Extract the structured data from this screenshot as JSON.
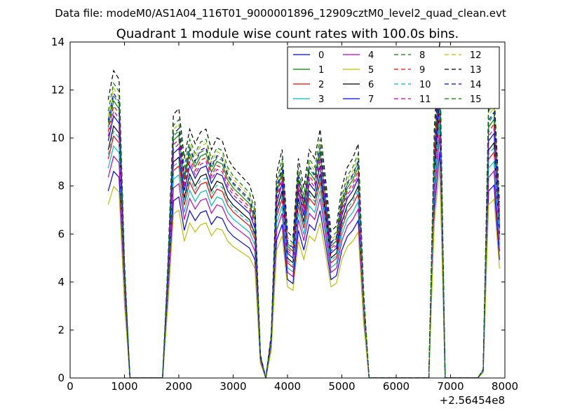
{
  "header": {
    "suptitle": "Data file: modeM0/AS1A04_116T01_9000001896_12909cztM0_level2_quad_clean.evt"
  },
  "chart_data": {
    "type": "line",
    "title": "Quadrant 1 module wise count rates with 100.0s bins.",
    "xlabel": "",
    "ylabel": "",
    "x_offset_label": "+2.56454e8",
    "xlim": [
      0,
      8000
    ],
    "ylim": [
      0,
      14
    ],
    "xticks": [
      "0",
      "1000",
      "2000",
      "3000",
      "4000",
      "5000",
      "6000",
      "7000",
      "8000"
    ],
    "yticks": [
      "0",
      "2",
      "4",
      "6",
      "8",
      "10",
      "12",
      "14"
    ],
    "grid": false,
    "legend_position": "top-right",
    "x": [
      700,
      800,
      900,
      1000,
      1100,
      1200,
      1300,
      1400,
      1500,
      1600,
      1700,
      1800,
      1900,
      2000,
      2100,
      2200,
      2300,
      2400,
      2500,
      2600,
      2700,
      2800,
      2900,
      3000,
      3100,
      3200,
      3300,
      3400,
      3500,
      3600,
      3700,
      3800,
      3900,
      4000,
      4100,
      4200,
      4300,
      4400,
      4500,
      4600,
      4700,
      4800,
      4900,
      5000,
      5100,
      5200,
      5300,
      5400,
      5500,
      5600,
      5700,
      5800,
      5900,
      6000,
      6100,
      6200,
      6300,
      6400,
      6500,
      6600,
      6700,
      6800,
      6900,
      7000,
      7100,
      7200,
      7300,
      7400,
      7500,
      7600,
      7700,
      7800,
      7900
    ],
    "base_profile": [
      9.5,
      10.5,
      10.2,
      4.0,
      0,
      0,
      0,
      0,
      0,
      0,
      0,
      4.0,
      9.0,
      9.2,
      7.5,
      8.5,
      8.0,
      8.4,
      8.5,
      7.8,
      8.2,
      8.1,
      7.5,
      7.2,
      7.0,
      6.8,
      6.6,
      6.0,
      0.8,
      0,
      1.5,
      7.0,
      7.8,
      5.0,
      4.8,
      7.5,
      6.5,
      7.8,
      7.5,
      8.5,
      6.8,
      5.0,
      5.2,
      6.5,
      7.2,
      7.5,
      8.0,
      3.0,
      0,
      0,
      0,
      0,
      0,
      0,
      0,
      0,
      0,
      0,
      0,
      0,
      8.5,
      11.5,
      0,
      0,
      0,
      0,
      0,
      0,
      0,
      0.3,
      9.5,
      9.8,
      6.0
    ],
    "series": [
      {
        "name": "0",
        "color": "#0000ff",
        "dash": "solid",
        "scale": 0.82
      },
      {
        "name": "1",
        "color": "#008000",
        "dash": "solid",
        "scale": 1.1
      },
      {
        "name": "2",
        "color": "#ff0000",
        "dash": "solid",
        "scale": 0.96
      },
      {
        "name": "3",
        "color": "#00bfbf",
        "dash": "solid",
        "scale": 0.92
      },
      {
        "name": "4",
        "color": "#bf00bf",
        "dash": "solid",
        "scale": 0.88
      },
      {
        "name": "5",
        "color": "#bfbf00",
        "dash": "solid",
        "scale": 0.76
      },
      {
        "name": "6",
        "color": "#000000",
        "dash": "solid",
        "scale": 1.0
      },
      {
        "name": "7",
        "color": "#0000ff",
        "dash": "solid",
        "scale": 1.04
      },
      {
        "name": "8",
        "color": "#008000",
        "dash": "dashed",
        "scale": 1.12
      },
      {
        "name": "9",
        "color": "#ff0000",
        "dash": "dashed",
        "scale": 1.08
      },
      {
        "name": "10",
        "color": "#00bfbf",
        "dash": "dashed",
        "scale": 0.98
      },
      {
        "name": "11",
        "color": "#bf00bf",
        "dash": "dashed",
        "scale": 1.06
      },
      {
        "name": "12",
        "color": "#bfbf00",
        "dash": "dashed",
        "scale": 1.15
      },
      {
        "name": "13",
        "color": "#000000",
        "dash": "dashed",
        "scale": 1.22
      },
      {
        "name": "14",
        "color": "#0000ff",
        "dash": "dashed",
        "scale": 1.13
      },
      {
        "name": "15",
        "color": "#008000",
        "dash": "dashed",
        "scale": 1.17
      }
    ]
  }
}
